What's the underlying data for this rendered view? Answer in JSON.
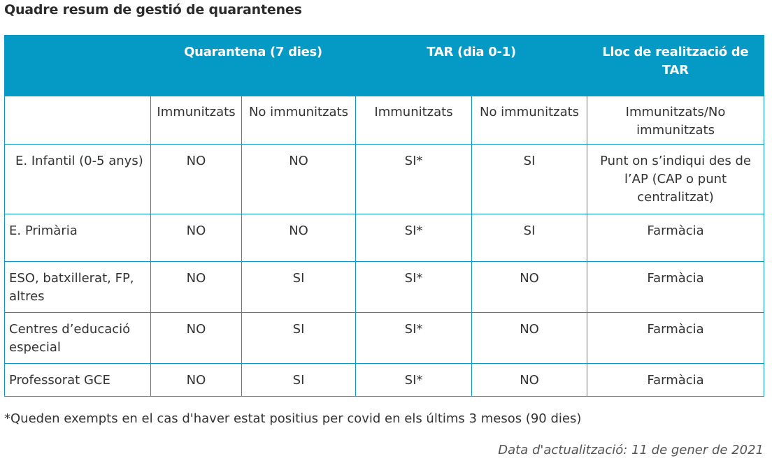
{
  "title": "Quadre resum de gestió de quarantenes",
  "header": {
    "corner": "",
    "groups": [
      "Quarantena (7 dies)",
      "TAR (dia 0-1)",
      "Lloc de realització de TAR"
    ],
    "subheaders": [
      "Immunitzats",
      "No immunitzats",
      "Immunitzats",
      "No immunitzats",
      "Immunitzats/No immunitzats"
    ]
  },
  "rows": [
    {
      "label": "E. Infantil (0-5 anys)",
      "cells": [
        "NO",
        "NO",
        "SI*",
        "SI",
        "Punt on s’indiqui des de l’AP (CAP o punt centralitzat)"
      ]
    },
    {
      "label": "E. Primària",
      "cells": [
        "NO",
        "NO",
        "SI*",
        "SI",
        "Farmàcia"
      ]
    },
    {
      "label": "ESO, batxillerat, FP, altres",
      "cells": [
        "NO",
        "SI",
        "SI*",
        "NO",
        "Farmàcia"
      ]
    },
    {
      "label": "Centres d’educació especial",
      "cells": [
        "NO",
        "SI",
        "SI*",
        "NO",
        "Farmàcia"
      ]
    },
    {
      "label": "Professorat GCE",
      "cells": [
        "NO",
        "SI",
        "SI*",
        "NO",
        "Farmàcia"
      ]
    }
  ],
  "footnote": "*Queden exempts en el cas d'haver estat positius per covid en els últims 3 mesos (90 dies)",
  "updated": "Data d'actualització: 11 de gener de 2021",
  "colors": {
    "header_bg": "#0599c5",
    "border": "#0b98c4"
  }
}
